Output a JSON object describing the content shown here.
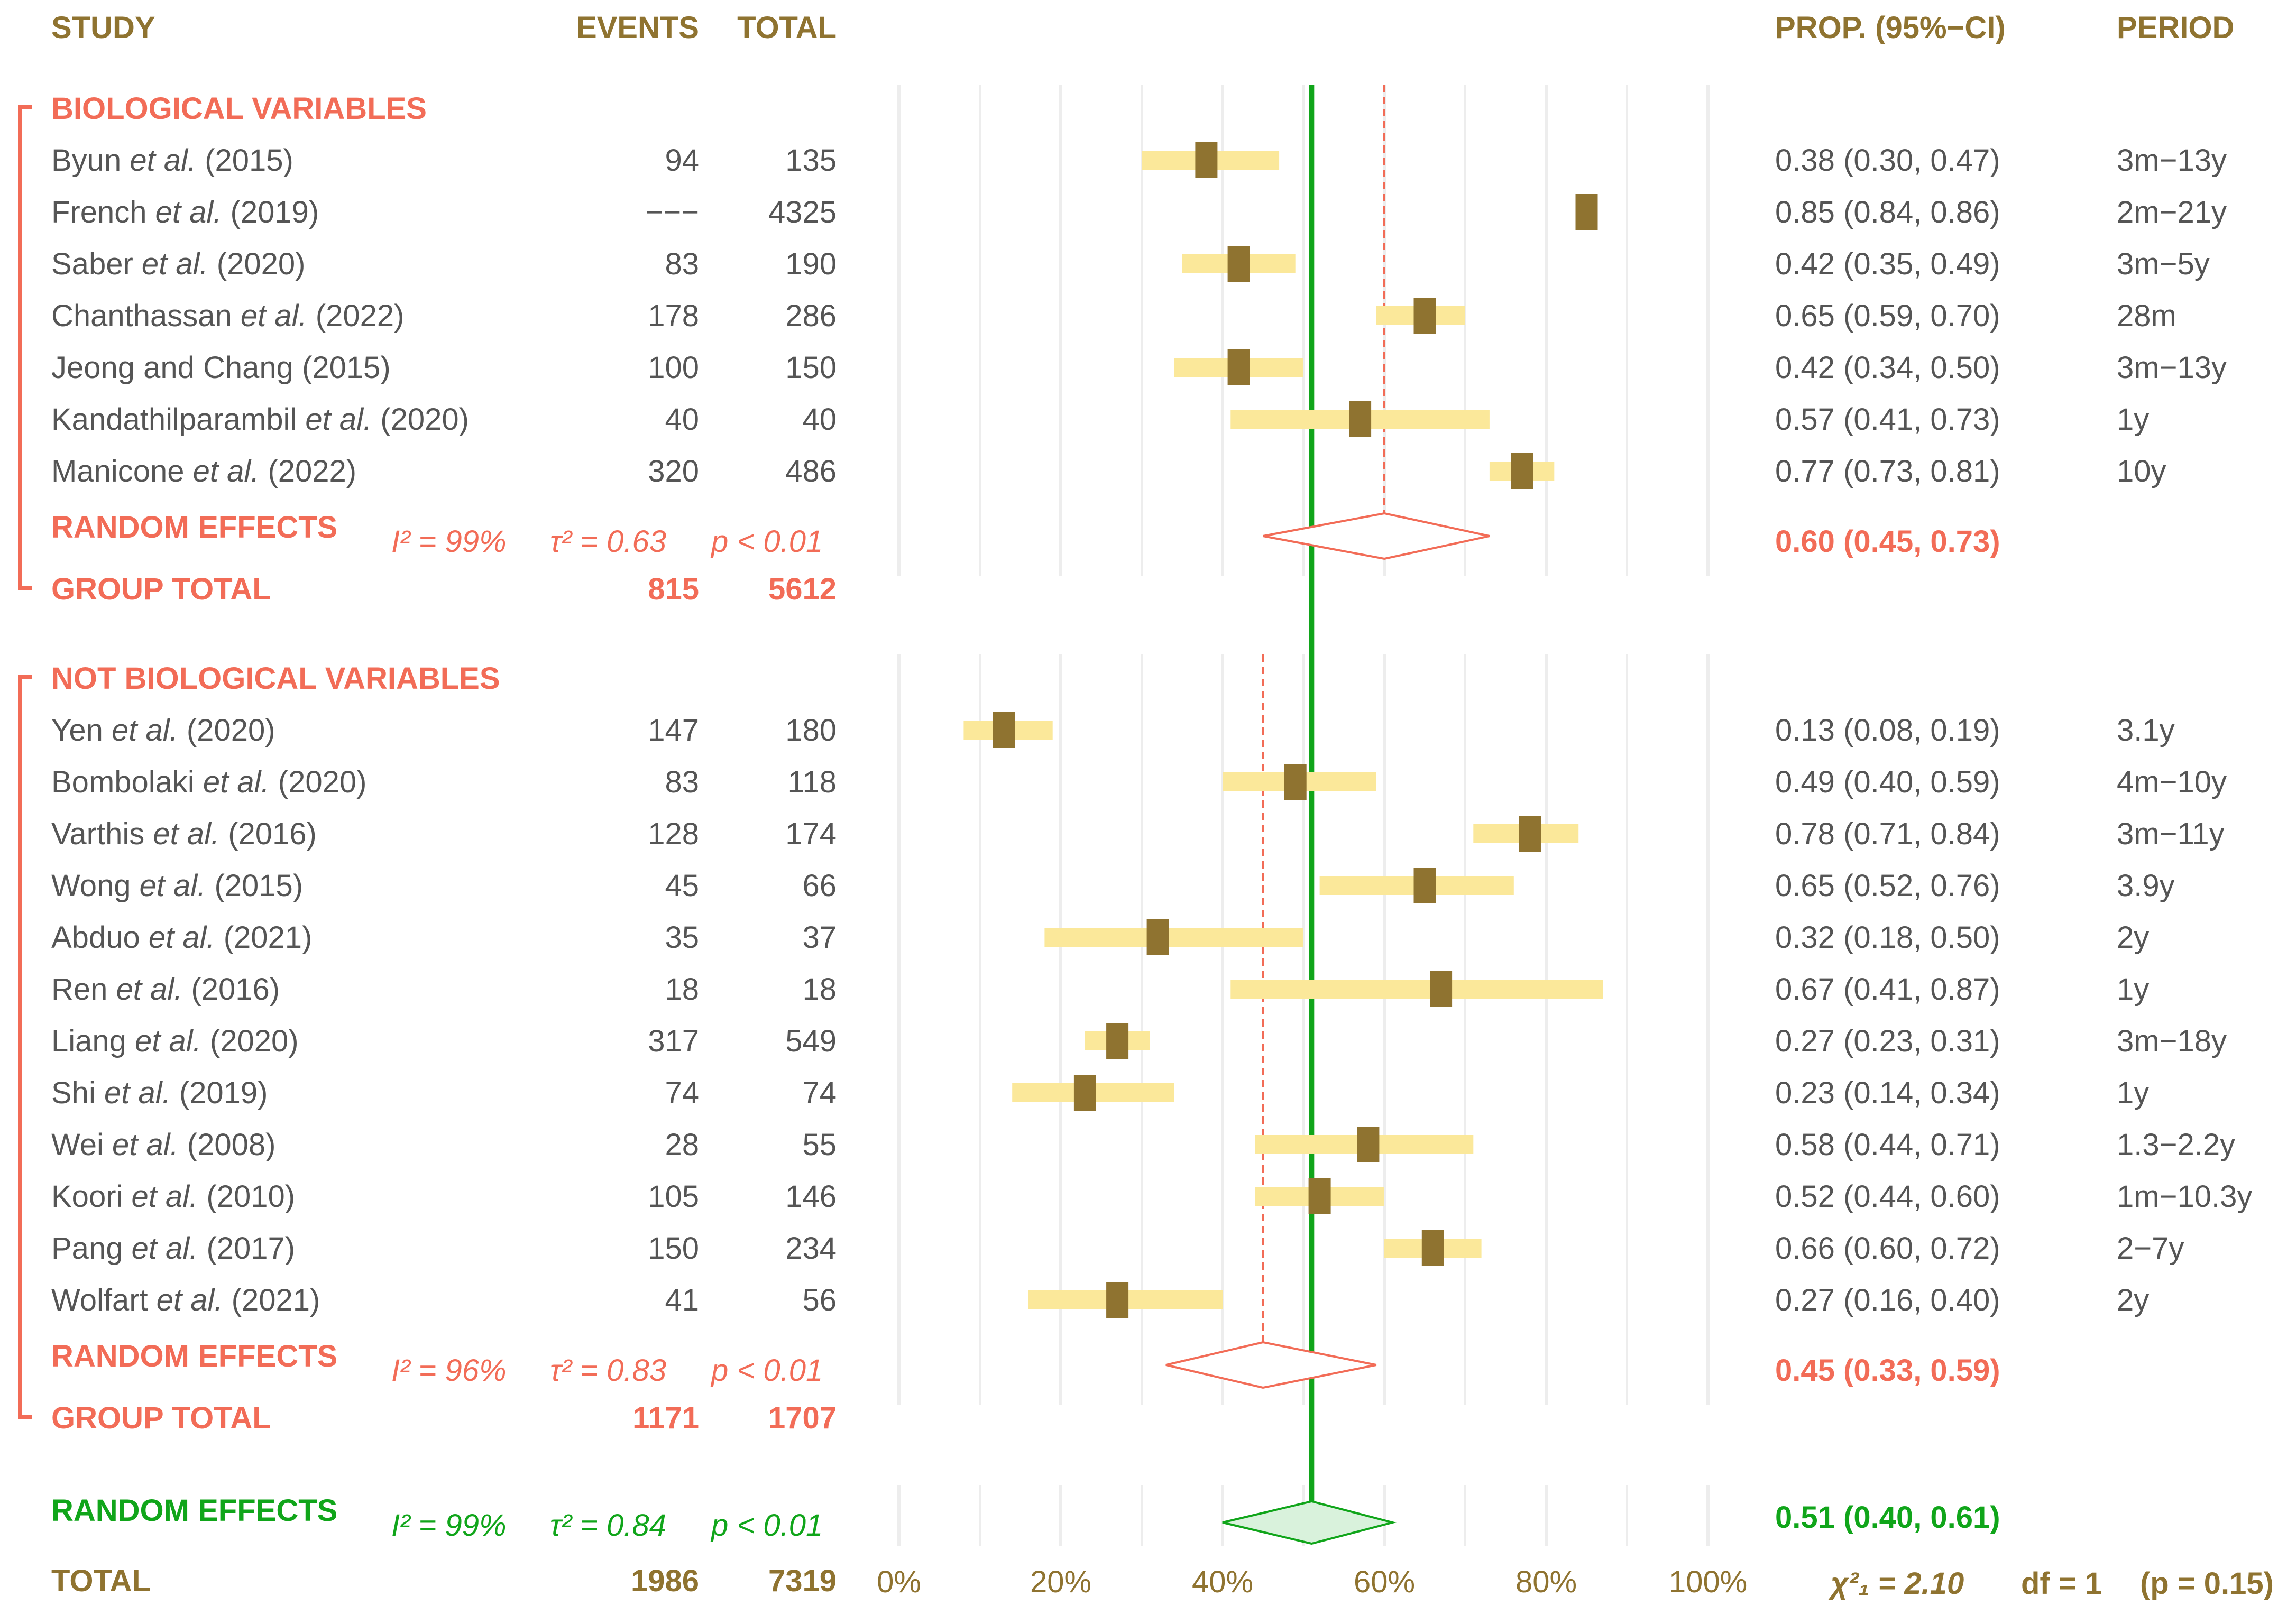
{
  "colors": {
    "header": "#8f7330",
    "group": "#f26c57",
    "overall": "#10a51a",
    "text": "#555555",
    "ci_bar": "#fbe89a",
    "point": "#8f7330",
    "grid": "#ededed",
    "diamond_fill": "#d9f2dc"
  },
  "headers": {
    "study": "STUDY",
    "events": "EVENTS",
    "total": "TOTAL",
    "prop_ci": "PROP. (95%−CI)",
    "period": "PERIOD"
  },
  "axis_ticks": [
    "0%",
    "20%",
    "40%",
    "60%",
    "80%",
    "100%"
  ],
  "chart_data": {
    "type": "forest",
    "xlim": [
      0,
      1
    ],
    "null_line": 0.51,
    "groups": [
      {
        "name": "BIOLOGICAL VARIABLES",
        "studies": [
          {
            "author": "Byun",
            "etal": true,
            "year": "(2015)",
            "events": "94",
            "total": "135",
            "prop": 0.38,
            "lo": 0.3,
            "hi": 0.47,
            "ci_text": "0.38 (0.30, 0.47)",
            "period": "3m−13y"
          },
          {
            "author": "French",
            "etal": true,
            "year": "(2019)",
            "events": "−−−",
            "total": "4325",
            "prop": 0.85,
            "lo": 0.84,
            "hi": 0.86,
            "ci_text": "0.85 (0.84, 0.86)",
            "period": "2m−21y"
          },
          {
            "author": "Saber",
            "etal": true,
            "year": "(2020)",
            "events": "83",
            "total": "190",
            "prop": 0.42,
            "lo": 0.35,
            "hi": 0.49,
            "ci_text": "0.42 (0.35, 0.49)",
            "period": "3m−5y"
          },
          {
            "author": "Chanthassan",
            "etal": true,
            "year": "(2022)",
            "events": "178",
            "total": "286",
            "prop": 0.65,
            "lo": 0.59,
            "hi": 0.7,
            "ci_text": "0.65 (0.59, 0.70)",
            "period": "28m"
          },
          {
            "author": "Jeong and Chang",
            "etal": false,
            "year": "(2015)",
            "events": "100",
            "total": "150",
            "prop": 0.42,
            "lo": 0.34,
            "hi": 0.5,
            "ci_text": "0.42 (0.34, 0.50)",
            "period": "3m−13y"
          },
          {
            "author": "Kandathilparambil",
            "etal": true,
            "year": "(2020)",
            "events": "40",
            "total": "40",
            "prop": 0.57,
            "lo": 0.41,
            "hi": 0.73,
            "ci_text": "0.57 (0.41, 0.73)",
            "period": "1y"
          },
          {
            "author": "Manicone",
            "etal": true,
            "year": "(2022)",
            "events": "320",
            "total": "486",
            "prop": 0.77,
            "lo": 0.73,
            "hi": 0.81,
            "ci_text": "0.77 (0.73, 0.81)",
            "period": "10y"
          }
        ],
        "random_effects": {
          "label": "RANDOM EFFECTS",
          "i2": "I² = 99%",
          "tau2": "τ² = 0.63",
          "p": "p < 0.01",
          "prop": 0.6,
          "lo": 0.45,
          "hi": 0.73,
          "ci_text": "0.60 (0.45, 0.73)"
        },
        "group_total": {
          "label": "GROUP TOTAL",
          "events": "815",
          "total": "5612"
        }
      },
      {
        "name": "NOT BIOLOGICAL VARIABLES",
        "studies": [
          {
            "author": "Yen",
            "etal": true,
            "year": "(2020)",
            "events": "147",
            "total": "180",
            "prop": 0.13,
            "lo": 0.08,
            "hi": 0.19,
            "ci_text": "0.13 (0.08, 0.19)",
            "period": "3.1y"
          },
          {
            "author": "Bombolaki",
            "etal": true,
            "year": "(2020)",
            "events": "83",
            "total": "118",
            "prop": 0.49,
            "lo": 0.4,
            "hi": 0.59,
            "ci_text": "0.49 (0.40, 0.59)",
            "period": "4m−10y"
          },
          {
            "author": "Varthis",
            "etal": true,
            "year": "(2016)",
            "events": "128",
            "total": "174",
            "prop": 0.78,
            "lo": 0.71,
            "hi": 0.84,
            "ci_text": "0.78 (0.71, 0.84)",
            "period": "3m−11y"
          },
          {
            "author": "Wong",
            "etal": true,
            "year": "(2015)",
            "events": "45",
            "total": "66",
            "prop": 0.65,
            "lo": 0.52,
            "hi": 0.76,
            "ci_text": "0.65 (0.52, 0.76)",
            "period": "3.9y"
          },
          {
            "author": "Abduo",
            "etal": true,
            "year": "(2021)",
            "events": "35",
            "total": "37",
            "prop": 0.32,
            "lo": 0.18,
            "hi": 0.5,
            "ci_text": "0.32 (0.18, 0.50)",
            "period": "2y"
          },
          {
            "author": "Ren",
            "etal": true,
            "year": "(2016)",
            "events": "18",
            "total": "18",
            "prop": 0.67,
            "lo": 0.41,
            "hi": 0.87,
            "ci_text": "0.67 (0.41, 0.87)",
            "period": "1y"
          },
          {
            "author": "Liang",
            "etal": true,
            "year": "(2020)",
            "events": "317",
            "total": "549",
            "prop": 0.27,
            "lo": 0.23,
            "hi": 0.31,
            "ci_text": "0.27 (0.23, 0.31)",
            "period": "3m−18y"
          },
          {
            "author": "Shi",
            "etal": true,
            "year": "(2019)",
            "events": "74",
            "total": "74",
            "prop": 0.23,
            "lo": 0.14,
            "hi": 0.34,
            "ci_text": "0.23 (0.14, 0.34)",
            "period": "1y"
          },
          {
            "author": "Wei",
            "etal": true,
            "year": "(2008)",
            "events": "28",
            "total": "55",
            "prop": 0.58,
            "lo": 0.44,
            "hi": 0.71,
            "ci_text": "0.58 (0.44, 0.71)",
            "period": "1.3−2.2y"
          },
          {
            "author": "Koori",
            "etal": true,
            "year": "(2010)",
            "events": "105",
            "total": "146",
            "prop": 0.52,
            "lo": 0.44,
            "hi": 0.6,
            "ci_text": "0.52 (0.44, 0.60)",
            "period": "1m−10.3y"
          },
          {
            "author": "Pang",
            "etal": true,
            "year": "(2017)",
            "events": "150",
            "total": "234",
            "prop": 0.66,
            "lo": 0.6,
            "hi": 0.72,
            "ci_text": "0.66 (0.60, 0.72)",
            "period": "2−7y"
          },
          {
            "author": "Wolfart",
            "etal": true,
            "year": "(2021)",
            "events": "41",
            "total": "56",
            "prop": 0.27,
            "lo": 0.16,
            "hi": 0.4,
            "ci_text": "0.27 (0.16, 0.40)",
            "period": "2y"
          }
        ],
        "random_effects": {
          "label": "RANDOM EFFECTS",
          "i2": "I² = 96%",
          "tau2": "τ² = 0.83",
          "p": "p < 0.01",
          "prop": 0.45,
          "lo": 0.33,
          "hi": 0.59,
          "ci_text": "0.45 (0.33, 0.59)"
        },
        "group_total": {
          "label": "GROUP TOTAL",
          "events": "1171",
          "total": "1707"
        }
      }
    ],
    "overall": {
      "random_effects": {
        "label": "RANDOM EFFECTS",
        "i2": "I² = 99%",
        "tau2": "τ² = 0.84",
        "p": "p < 0.01",
        "prop": 0.51,
        "lo": 0.4,
        "hi": 0.61,
        "ci_text": "0.51 (0.40, 0.61)"
      },
      "total": {
        "label": "TOTAL",
        "events": "1986",
        "total": "7319"
      },
      "subgroup_test": {
        "chi2": "χ²₁ = 2.10",
        "df": "df = 1",
        "p": "(p = 0.15)"
      }
    }
  }
}
